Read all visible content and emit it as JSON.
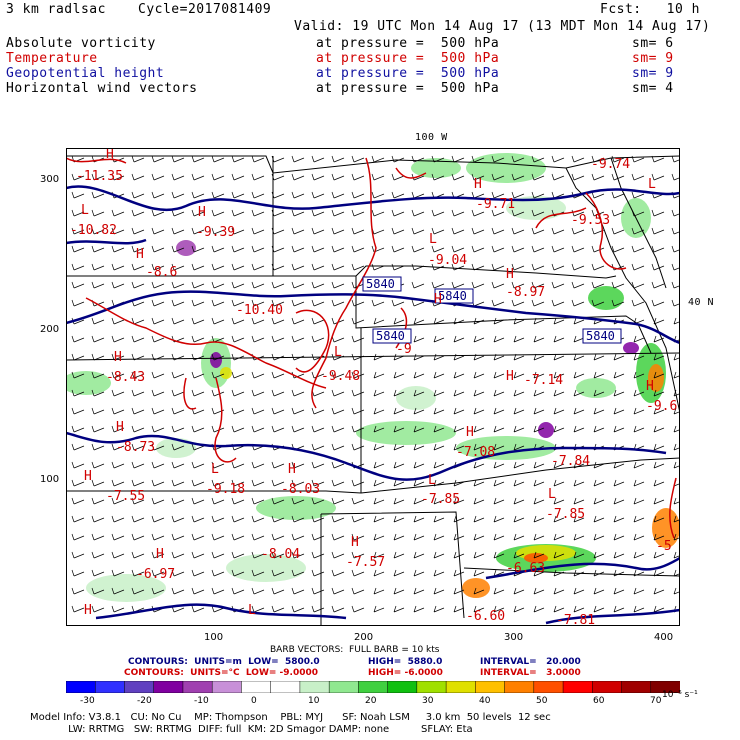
{
  "header": {
    "title": "3 km radlsac",
    "cycle": "Cycle=2017081409",
    "fcst": "Fcst:   10 h",
    "valid": "Valid: 19 UTC Mon 14 Aug 17 (13 MDT Mon 14 Aug 17)"
  },
  "fields": [
    {
      "name": "Absolute vorticity",
      "level": "at pressure =  500 hPa",
      "sm": "sm= 6",
      "color": "#000000"
    },
    {
      "name": "Temperature",
      "level": "at pressure =  500 hPa",
      "sm": "sm= 9",
      "color": "#d00000"
    },
    {
      "name": "Geopotential height",
      "level": "at pressure =  500 hPa",
      "sm": "sm= 9",
      "color": "#1010a0"
    },
    {
      "name": "Horizontal wind vectors",
      "level": "at pressure =  500 hPa",
      "sm": "sm= 4",
      "color": "#000000"
    }
  ],
  "map": {
    "lon_label": "100 W",
    "lat_label": "40 N",
    "y_ticks": [
      "300",
      "200",
      "100"
    ],
    "x_ticks": [
      "100",
      "200",
      "300",
      "400"
    ],
    "height_labels": [
      "5840",
      "5840",
      "5840",
      "5840"
    ],
    "temp_labels": [
      {
        "t": "-11.35"
      },
      {
        "t": "-10.82"
      },
      {
        "t": "-9.39"
      },
      {
        "t": "-9.71"
      },
      {
        "t": "-9.74"
      },
      {
        "t": "-9.53"
      },
      {
        "t": "-9.04"
      },
      {
        "t": "-8.97"
      },
      {
        "t": "-10.40"
      },
      {
        "t": "-9"
      },
      {
        "t": "-9.48"
      },
      {
        "t": "-8.43"
      },
      {
        "t": "-8.73"
      },
      {
        "t": "-9.18"
      },
      {
        "t": "-8.03"
      },
      {
        "t": "-7.55"
      },
      {
        "t": "-7.85"
      },
      {
        "t": "-7.84"
      },
      {
        "t": "-7.85"
      },
      {
        "t": "-7.08"
      },
      {
        "t": "-7.14"
      },
      {
        "t": "-9.6"
      },
      {
        "t": "-8.04"
      },
      {
        "t": "-7.57"
      },
      {
        "t": "-6.97"
      },
      {
        "t": "-6.63"
      },
      {
        "t": "-6.60"
      },
      {
        "t": "-7.81"
      },
      {
        "t": "-5"
      },
      {
        "t": "-8.6"
      }
    ],
    "hl_labels": [
      "H",
      "L",
      "H",
      "H",
      "L",
      "H",
      "L",
      "H",
      "H",
      "L",
      "H",
      "H",
      "L",
      "H",
      "H",
      "L",
      "H",
      "L",
      "H",
      "H",
      "H",
      "H",
      "L",
      "H"
    ]
  },
  "barb_info": "BARB VECTORS:  FULL BARB = 10 kts",
  "contours": {
    "blue": {
      "label": "CONTOURS:  UNITS=m  LOW=  5800.0",
      "high": "HIGH=  5880.0",
      "interval": "INTERVAL=   20.000",
      "color": "#000080"
    },
    "red": {
      "label": "CONTOURS:  UNITS=°C  LOW= -9.0000",
      "high": "HIGH= -6.0000",
      "interval": "INTERVAL=   3.0000",
      "color": "#d00000"
    }
  },
  "colorbar": {
    "labels": [
      "-30",
      "-20",
      "-10",
      "0",
      "10",
      "20",
      "30",
      "40",
      "50",
      "60",
      "70"
    ],
    "units": "10⁻⁵ s⁻¹",
    "colors": [
      "#0000ff",
      "#3030ff",
      "#6040c0",
      "#8000a0",
      "#a040b0",
      "#c890d8",
      "#ffffff",
      "#ffffff",
      "#c8f0c8",
      "#90e890",
      "#40d040",
      "#10c010",
      "#a0e000",
      "#e0e000",
      "#ffc000",
      "#ff8000",
      "#ff5000",
      "#ff0000",
      "#d00000",
      "#a00000",
      "#800000"
    ]
  },
  "footer": {
    "line1": "Model Info: V3.8.1   CU: No Cu    MP: Thompson    PBL: MYJ      SF: Noah LSM     3.0 km  50 levels  12 sec",
    "line2": "            LW: RRTMG   SW: RRTMG  DIFF: full  KM: 2D Smagor DAMP: none          SFLAY: Eta"
  }
}
